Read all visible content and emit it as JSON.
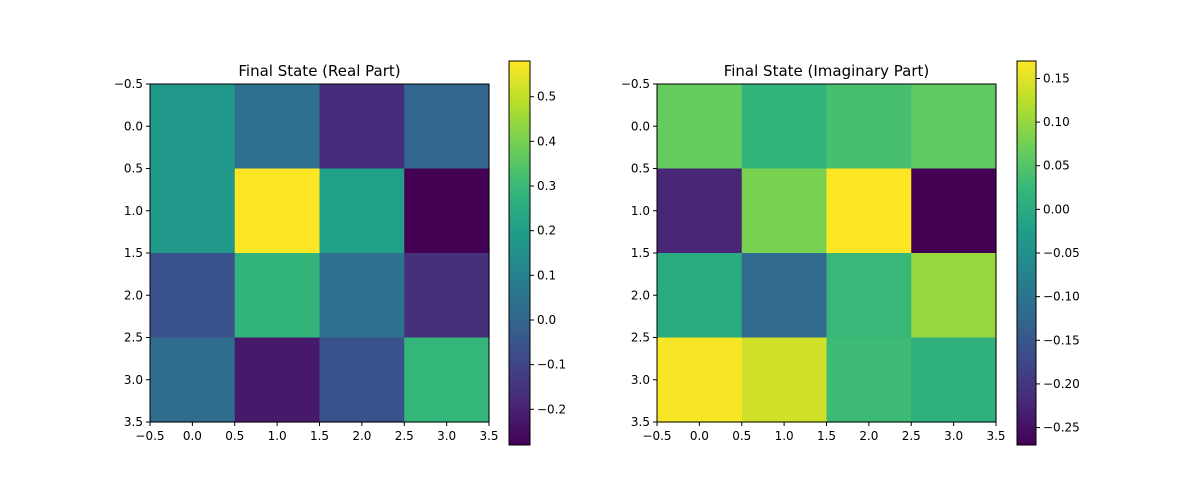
{
  "chart_data": [
    {
      "type": "heatmap",
      "title": "Final State (Real Part)",
      "xlabel": "",
      "ylabel": "",
      "xlim": [
        -0.5,
        3.5
      ],
      "ylim": [
        3.5,
        -0.5
      ],
      "x_ticks": [
        "−0.5",
        "0.0",
        "0.5",
        "1.0",
        "1.5",
        "2.0",
        "2.5",
        "3.0",
        "3.5"
      ],
      "y_ticks": [
        "−0.5",
        "0.0",
        "0.5",
        "1.0",
        "1.5",
        "2.0",
        "2.5",
        "3.0",
        "3.5"
      ],
      "matrix": [
        [
          0.18,
          0.04,
          -0.17,
          0.0
        ],
        [
          0.18,
          0.58,
          0.2,
          -0.28
        ],
        [
          -0.06,
          0.28,
          0.04,
          -0.16
        ],
        [
          0.02,
          -0.22,
          -0.06,
          0.29
        ]
      ],
      "colormap": "viridis",
      "colorbar": {
        "vmin": -0.28,
        "vmax": 0.58,
        "ticks": [
          {
            "value": -0.2,
            "label": "−0.2"
          },
          {
            "value": -0.1,
            "label": "−0.1"
          },
          {
            "value": 0.0,
            "label": "0.0"
          },
          {
            "value": 0.1,
            "label": "0.1"
          },
          {
            "value": 0.2,
            "label": "0.2"
          },
          {
            "value": 0.3,
            "label": "0.3"
          },
          {
            "value": 0.4,
            "label": "0.4"
          },
          {
            "value": 0.5,
            "label": "0.5"
          }
        ]
      },
      "grid": false
    },
    {
      "type": "heatmap",
      "title": "Final State (Imaginary Part)",
      "xlabel": "",
      "ylabel": "",
      "xlim": [
        -0.5,
        3.5
      ],
      "ylim": [
        3.5,
        -0.5
      ],
      "x_ticks": [
        "−0.5",
        "0.0",
        "0.5",
        "1.0",
        "1.5",
        "2.0",
        "2.5",
        "3.0",
        "3.5"
      ],
      "y_ticks": [
        "−0.5",
        "0.0",
        "0.5",
        "1.0",
        "1.5",
        "2.0",
        "2.5",
        "3.0",
        "3.5"
      ],
      "matrix": [
        [
          0.065,
          0.015,
          0.04,
          0.06
        ],
        [
          -0.225,
          0.08,
          0.17,
          -0.27
        ],
        [
          0.0,
          -0.12,
          0.025,
          0.1
        ],
        [
          0.165,
          0.14,
          0.03,
          0.01
        ]
      ],
      "colormap": "viridis",
      "colorbar": {
        "vmin": -0.27,
        "vmax": 0.17,
        "ticks": [
          {
            "value": -0.25,
            "label": "−0.25"
          },
          {
            "value": -0.2,
            "label": "−0.20"
          },
          {
            "value": -0.15,
            "label": "−0.15"
          },
          {
            "value": -0.1,
            "label": "−0.10"
          },
          {
            "value": -0.05,
            "label": "−0.05"
          },
          {
            "value": 0.0,
            "label": "0.00"
          },
          {
            "value": 0.05,
            "label": "0.05"
          },
          {
            "value": 0.1,
            "label": "0.10"
          },
          {
            "value": 0.15,
            "label": "0.15"
          }
        ]
      },
      "grid": false
    }
  ]
}
